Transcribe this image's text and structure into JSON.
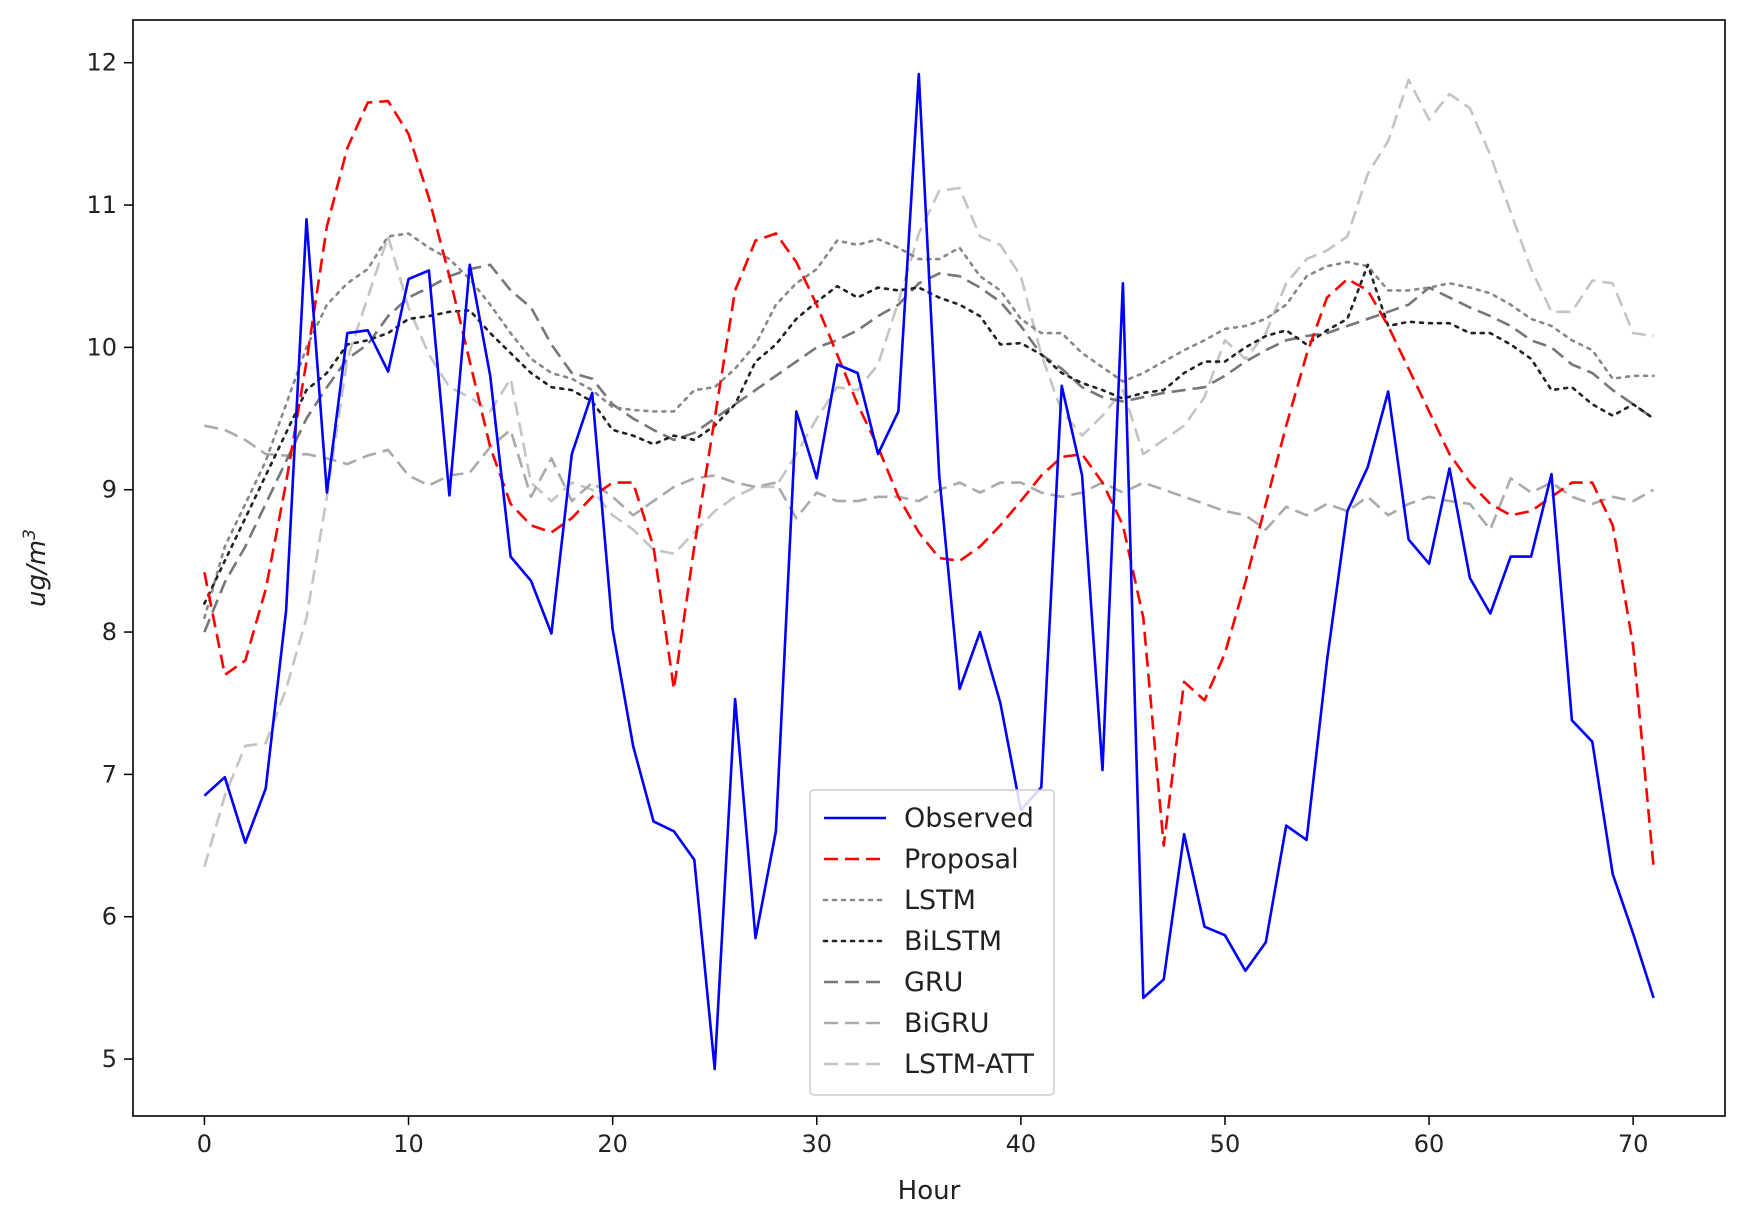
{
  "chart_data": {
    "type": "line",
    "xlabel": "Hour",
    "ylabel": "ug/m",
    "ylabel_superscript": "3",
    "xlim": [
      -3.5,
      74.5
    ],
    "ylim": [
      4.6,
      12.3
    ],
    "xticks": [
      0,
      10,
      20,
      30,
      40,
      50,
      60,
      70
    ],
    "yticks": [
      5,
      6,
      7,
      8,
      9,
      10,
      11,
      12
    ],
    "legend_position": "lower-center",
    "x_start": 0,
    "series": [
      {
        "name": "Observed",
        "color": "#0000ff",
        "style": "solid",
        "values": [
          6.85,
          6.98,
          6.52,
          6.9,
          8.15,
          10.9,
          8.98,
          10.1,
          10.12,
          9.83,
          10.48,
          10.54,
          8.96,
          10.58,
          9.8,
          8.53,
          8.36,
          7.99,
          9.25,
          9.68,
          8.02,
          7.2,
          6.67,
          6.6,
          6.4,
          4.93,
          7.53,
          5.85,
          6.6,
          9.55,
          9.08,
          9.88,
          9.82,
          9.25,
          9.55,
          11.92,
          9.1,
          7.6,
          8.0,
          7.5,
          6.75,
          6.91,
          9.73,
          9.1,
          7.03,
          10.45,
          5.43,
          5.56,
          6.58,
          5.93,
          5.87,
          5.62,
          5.82,
          6.64,
          6.54,
          7.8,
          8.85,
          9.16,
          9.69,
          8.65,
          8.48,
          9.15,
          8.38,
          8.13,
          8.53,
          8.53,
          9.11,
          7.38,
          7.23,
          6.3,
          5.88,
          5.43
        ]
      },
      {
        "name": "Proposal",
        "color": "#ff0000",
        "style": "dashed",
        "values": [
          8.42,
          7.7,
          7.8,
          8.3,
          9.05,
          9.9,
          10.85,
          11.4,
          11.72,
          11.73,
          11.5,
          11.05,
          10.5,
          9.9,
          9.3,
          8.9,
          8.75,
          8.7,
          8.8,
          8.95,
          9.05,
          9.05,
          8.6,
          7.6,
          8.6,
          9.5,
          10.4,
          10.75,
          10.8,
          10.6,
          10.3,
          9.95,
          9.6,
          9.3,
          8.95,
          8.7,
          8.52,
          8.5,
          8.6,
          8.75,
          8.92,
          9.1,
          9.23,
          9.25,
          9.05,
          8.75,
          8.1,
          6.5,
          7.65,
          7.52,
          7.85,
          8.35,
          8.9,
          9.45,
          9.95,
          10.35,
          10.48,
          10.4,
          10.15,
          9.85,
          9.55,
          9.25,
          9.05,
          8.9,
          8.82,
          8.85,
          8.95,
          9.05,
          9.05,
          8.75,
          7.9,
          6.35
        ]
      },
      {
        "name": "LSTM",
        "color": "#888888",
        "style": "dotted",
        "values": [
          8.1,
          8.6,
          8.9,
          9.2,
          9.6,
          10.0,
          10.3,
          10.45,
          10.55,
          10.78,
          10.8,
          10.7,
          10.62,
          10.48,
          10.3,
          10.1,
          9.92,
          9.82,
          9.78,
          9.7,
          9.58,
          9.56,
          9.55,
          9.55,
          9.7,
          9.72,
          9.85,
          10.02,
          10.3,
          10.45,
          10.55,
          10.75,
          10.72,
          10.76,
          10.7,
          10.62,
          10.62,
          10.7,
          10.5,
          10.4,
          10.2,
          10.1,
          10.1,
          9.96,
          9.86,
          9.76,
          9.82,
          9.9,
          9.98,
          10.05,
          10.13,
          10.15,
          10.2,
          10.3,
          10.5,
          10.57,
          10.6,
          10.57,
          10.4,
          10.4,
          10.42,
          10.45,
          10.42,
          10.38,
          10.3,
          10.2,
          10.15,
          10.05,
          9.98,
          9.78,
          9.8,
          9.8
        ]
      },
      {
        "name": "BiLSTM",
        "color": "#222222",
        "style": "dotted",
        "values": [
          8.2,
          8.5,
          8.8,
          9.1,
          9.4,
          9.7,
          9.82,
          10.02,
          10.05,
          10.1,
          10.2,
          10.22,
          10.25,
          10.26,
          10.1,
          9.96,
          9.82,
          9.72,
          9.7,
          9.62,
          9.42,
          9.38,
          9.32,
          9.38,
          9.35,
          9.45,
          9.6,
          9.9,
          10.02,
          10.2,
          10.32,
          10.43,
          10.35,
          10.42,
          10.4,
          10.42,
          10.35,
          10.3,
          10.22,
          10.02,
          10.03,
          9.95,
          9.82,
          9.75,
          9.7,
          9.64,
          9.68,
          9.7,
          9.82,
          9.9,
          9.9,
          10.0,
          10.08,
          10.12,
          10.02,
          10.12,
          10.2,
          10.58,
          10.15,
          10.18,
          10.17,
          10.17,
          10.1,
          10.1,
          10.02,
          9.92,
          9.7,
          9.72,
          9.6,
          9.52,
          9.6,
          9.5
        ]
      },
      {
        "name": "GRU",
        "color": "#777777",
        "style": "dashed",
        "values": [
          8.0,
          8.35,
          8.6,
          8.9,
          9.2,
          9.5,
          9.72,
          9.92,
          10.02,
          10.22,
          10.35,
          10.42,
          10.5,
          10.55,
          10.58,
          10.4,
          10.28,
          10.02,
          9.82,
          9.78,
          9.6,
          9.5,
          9.42,
          9.35,
          9.4,
          9.5,
          9.6,
          9.7,
          9.8,
          9.9,
          10.0,
          10.05,
          10.12,
          10.22,
          10.3,
          10.45,
          10.52,
          10.5,
          10.42,
          10.32,
          10.15,
          9.95,
          9.85,
          9.72,
          9.65,
          9.62,
          9.65,
          9.68,
          9.7,
          9.72,
          9.8,
          9.9,
          9.98,
          10.05,
          10.08,
          10.1,
          10.15,
          10.2,
          10.25,
          10.3,
          10.42,
          10.35,
          10.28,
          10.22,
          10.15,
          10.05,
          10.0,
          9.88,
          9.82,
          9.7,
          9.6,
          9.5
        ]
      },
      {
        "name": "BiGRU",
        "color": "#aaaaaa",
        "style": "dashed",
        "values": [
          9.45,
          9.42,
          9.35,
          9.25,
          9.24,
          9.25,
          9.22,
          9.18,
          9.24,
          9.28,
          9.1,
          9.03,
          9.1,
          9.12,
          9.3,
          9.42,
          8.95,
          9.22,
          8.92,
          9.05,
          8.95,
          8.82,
          8.92,
          9.02,
          9.08,
          9.1,
          9.05,
          9.02,
          9.05,
          8.8,
          8.98,
          8.92,
          8.92,
          8.95,
          8.95,
          8.92,
          9.0,
          9.05,
          8.98,
          9.05,
          9.05,
          8.98,
          8.95,
          8.98,
          9.05,
          8.98,
          9.05,
          9.0,
          8.95,
          8.9,
          8.85,
          8.82,
          8.72,
          8.88,
          8.82,
          8.9,
          8.85,
          8.95,
          8.82,
          8.9,
          8.95,
          8.92,
          8.9,
          8.72,
          9.08,
          8.98,
          9.05,
          8.95,
          8.9,
          8.95,
          8.92,
          9.0
        ]
      },
      {
        "name": "LSTM-ATT",
        "color": "#c4c4c4",
        "style": "dashed",
        "values": [
          6.35,
          6.85,
          7.2,
          7.22,
          7.6,
          8.1,
          8.95,
          9.92,
          10.35,
          10.78,
          10.28,
          9.95,
          9.72,
          9.65,
          9.55,
          9.78,
          9.05,
          8.92,
          9.05,
          9.0,
          8.82,
          8.72,
          8.58,
          8.55,
          8.7,
          8.85,
          8.95,
          9.02,
          9.02,
          9.25,
          9.5,
          9.72,
          9.7,
          9.88,
          10.32,
          10.8,
          11.1,
          11.12,
          10.78,
          10.72,
          10.5,
          9.95,
          9.55,
          9.38,
          9.52,
          9.7,
          9.25,
          9.35,
          9.45,
          9.65,
          10.05,
          9.92,
          10.1,
          10.45,
          10.62,
          10.68,
          10.78,
          11.22,
          11.45,
          11.88,
          11.6,
          11.78,
          11.68,
          11.35,
          10.95,
          10.55,
          10.25,
          10.25,
          10.47,
          10.45,
          10.1,
          10.08
        ]
      }
    ]
  }
}
